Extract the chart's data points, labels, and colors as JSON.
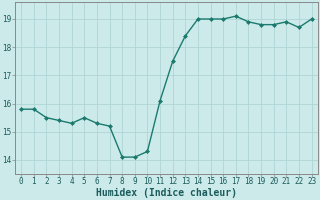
{
  "x": [
    0,
    1,
    2,
    3,
    4,
    5,
    6,
    7,
    8,
    9,
    10,
    11,
    12,
    13,
    14,
    15,
    16,
    17,
    18,
    19,
    20,
    21,
    22,
    23
  ],
  "y": [
    15.8,
    15.8,
    15.5,
    15.4,
    15.3,
    15.5,
    15.3,
    15.2,
    14.1,
    14.1,
    14.3,
    16.1,
    17.5,
    18.4,
    19.0,
    19.0,
    19.0,
    19.1,
    18.9,
    18.8,
    18.8,
    18.9,
    18.7,
    19.0
  ],
  "line_color": "#1a7a6e",
  "marker": "D",
  "marker_size": 2.0,
  "bg_color": "#cdeaea",
  "grid_color": "#b0d4d4",
  "xlabel": "Humidex (Indice chaleur)",
  "ylim": [
    13.5,
    19.6
  ],
  "xlim": [
    -0.5,
    23.5
  ],
  "yticks": [
    14,
    15,
    16,
    17,
    18,
    19
  ],
  "xticks": [
    0,
    1,
    2,
    3,
    4,
    5,
    6,
    7,
    8,
    9,
    10,
    11,
    12,
    13,
    14,
    15,
    16,
    17,
    18,
    19,
    20,
    21,
    22,
    23
  ],
  "tick_fontsize": 5.5,
  "xlabel_fontsize": 7.0,
  "tick_color": "#1a5c5c",
  "spine_color": "#888888",
  "line_width": 1.0
}
